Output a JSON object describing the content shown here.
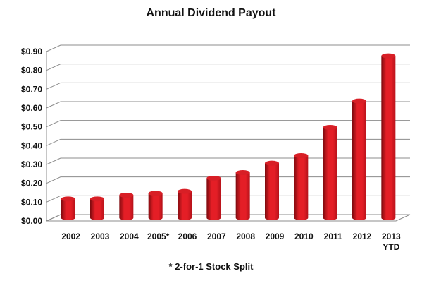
{
  "chart_data": {
    "type": "bar",
    "title": "Annual Dividend Payout",
    "xlabel": "",
    "ylabel": "",
    "categories": [
      "2002",
      "2003",
      "2004",
      "2005*",
      "2006",
      "2007",
      "2008",
      "2009",
      "2010",
      "2011",
      "2012",
      "2013\nYTD"
    ],
    "values": [
      0.1,
      0.1,
      0.12,
      0.13,
      0.14,
      0.21,
      0.24,
      0.29,
      0.33,
      0.48,
      0.62,
      0.86
    ],
    "y_tick_labels": [
      "$0.00",
      "$0.10",
      "$0.20",
      "$0.30",
      "$0.40",
      "$0.50",
      "$0.60",
      "$0.70",
      "$0.80",
      "$0.90"
    ],
    "y_ticks": [
      0,
      0.1,
      0.2,
      0.3,
      0.4,
      0.5,
      0.6,
      0.7,
      0.8,
      0.9
    ],
    "ylim": [
      0,
      0.9
    ],
    "grid": true,
    "bar_color": "#e41e26",
    "bar_dark_color": "#7d0a0e",
    "footnote": "* 2-for-1 Stock Split"
  }
}
